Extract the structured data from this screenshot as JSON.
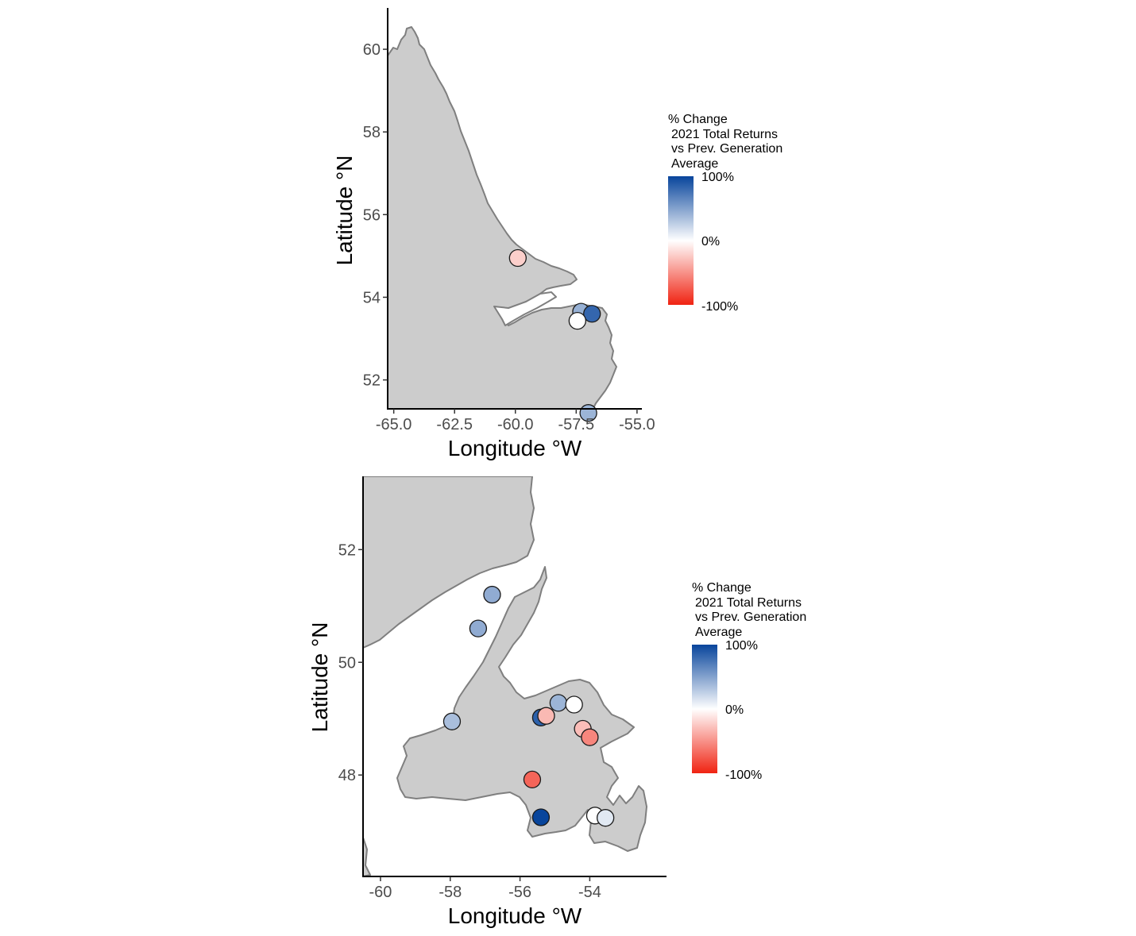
{
  "maps": [
    {
      "id": "labrador",
      "xlabel": "Longitude °W",
      "ylabel": "Latitude °N",
      "xlim": [
        -65.25,
        -54.8
      ],
      "ylim": [
        51.3,
        61.0
      ],
      "xticks": [
        -65.0,
        -62.5,
        -60.0,
        -57.5,
        -55.0
      ],
      "xtick_labels": [
        "-65.0",
        "-62.5",
        "-60.0",
        "-57.5",
        "-55.0"
      ],
      "yticks": [
        52,
        54,
        56,
        58,
        60
      ],
      "ytick_labels": [
        "52",
        "54",
        "56",
        "58",
        "60"
      ],
      "legend": {
        "title": [
          "% Change",
          "2021 Total Returns",
          "vs Prev. Generation",
          "Average"
        ],
        "labels": [
          "100%",
          "0%",
          "-100%"
        ]
      },
      "sites": [
        {
          "lon": -59.9,
          "lat": 54.95,
          "pct": -22
        },
        {
          "lon": -57.3,
          "lat": 53.65,
          "pct": 42
        },
        {
          "lon": -56.85,
          "lat": 53.6,
          "pct": 82
        },
        {
          "lon": -57.45,
          "lat": 53.43,
          "pct": 0
        },
        {
          "lon": -57.0,
          "lat": 51.2,
          "pct": 40
        }
      ]
    },
    {
      "id": "newfoundland",
      "xlabel": "Longitude °W",
      "ylabel": "Latitude °N",
      "xlim": [
        -60.5,
        -51.8
      ],
      "ylim": [
        46.2,
        53.3
      ],
      "xticks": [
        -60,
        -58,
        -56,
        -54
      ],
      "xtick_labels": [
        "-60",
        "-58",
        "-56",
        "-54"
      ],
      "yticks": [
        48,
        50,
        52
      ],
      "ytick_labels": [
        "48",
        "50",
        "52"
      ],
      "legend": {
        "title": [
          "% Change",
          "2021 Total Returns",
          "vs Prev. Generation",
          "Average"
        ],
        "labels": [
          "100%",
          "0%",
          "-100%"
        ]
      },
      "sites": [
        {
          "lon": -56.8,
          "lat": 51.2,
          "pct": 45
        },
        {
          "lon": -57.2,
          "lat": 50.6,
          "pct": 45
        },
        {
          "lon": -57.95,
          "lat": 48.95,
          "pct": 35
        },
        {
          "lon": -55.4,
          "lat": 49.02,
          "pct": 85
        },
        {
          "lon": -55.25,
          "lat": 49.05,
          "pct": -32
        },
        {
          "lon": -54.9,
          "lat": 49.28,
          "pct": 40
        },
        {
          "lon": -54.45,
          "lat": 49.25,
          "pct": 0
        },
        {
          "lon": -54.2,
          "lat": 48.82,
          "pct": -30
        },
        {
          "lon": -54.0,
          "lat": 48.67,
          "pct": -55
        },
        {
          "lon": -55.65,
          "lat": 47.92,
          "pct": -70
        },
        {
          "lon": -55.4,
          "lat": 47.25,
          "pct": 100
        },
        {
          "lon": -53.85,
          "lat": 47.28,
          "pct": 0
        },
        {
          "lon": -53.55,
          "lat": 47.24,
          "pct": 12
        }
      ]
    }
  ],
  "colors": {
    "high": "#08459c",
    "mid": "#ffffff",
    "low": "#f02312",
    "land": "#cccccc",
    "coast": "#7f7f7f"
  }
}
